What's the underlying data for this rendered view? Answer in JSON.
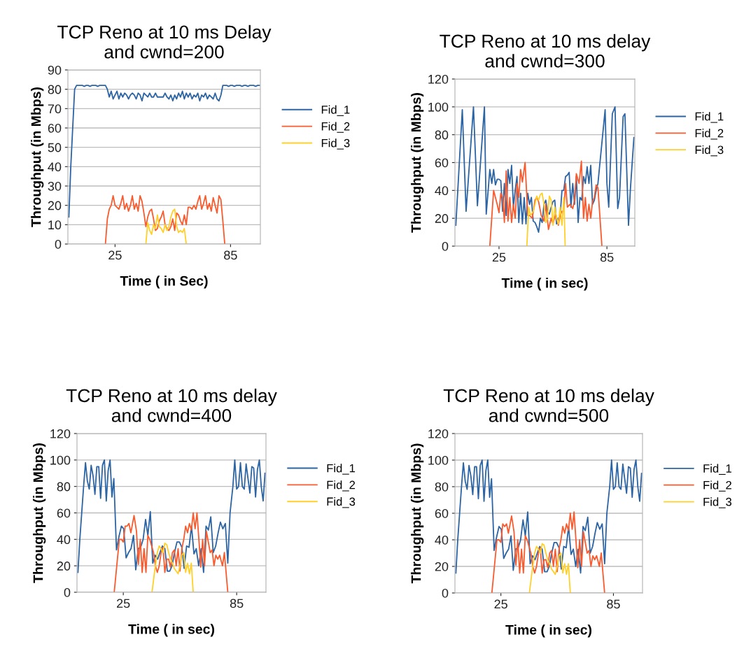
{
  "chart_data": [
    {
      "type": "line",
      "title": "TCP Reno at 10 ms Delay\nand cwnd=200",
      "xlabel": "Time ( in Sec)",
      "ylabel": "Throughput (in Mbps)",
      "xlim": [
        0.5,
        100.5
      ],
      "xticks": [
        25,
        85
      ],
      "ylim": [
        0,
        90
      ],
      "yticks": [
        0,
        10,
        20,
        30,
        40,
        50,
        60,
        70,
        80,
        90
      ],
      "grid": "y",
      "legend": "right",
      "series": [
        {
          "name": "Fid_1",
          "color": "#2c64a4",
          "x": [
            1,
            2,
            3,
            4,
            5,
            6,
            7,
            8,
            9,
            10,
            11,
            12,
            13,
            14,
            15,
            16,
            17,
            18,
            19,
            20,
            21,
            22,
            23,
            24,
            25,
            26,
            27,
            28,
            29,
            30,
            31,
            32,
            33,
            34,
            35,
            36,
            37,
            38,
            39,
            40,
            41,
            42,
            43,
            44,
            45,
            46,
            47,
            48,
            49,
            50,
            51,
            52,
            53,
            54,
            55,
            56,
            57,
            58,
            59,
            60,
            61,
            62,
            63,
            64,
            65,
            66,
            67,
            68,
            69,
            70,
            71,
            72,
            73,
            74,
            75,
            76,
            77,
            78,
            79,
            80,
            81,
            82,
            83,
            84,
            85,
            86,
            87,
            88,
            89,
            90,
            91,
            92,
            93,
            94,
            95,
            96,
            97,
            98,
            99,
            100
          ],
          "values": [
            14,
            40,
            60,
            80,
            82,
            82,
            82,
            82,
            81.5,
            82,
            82,
            81.5,
            82,
            82,
            82,
            81.5,
            82,
            82,
            82,
            82,
            80,
            76,
            79,
            75,
            77,
            79,
            75,
            78,
            76,
            78,
            77,
            75,
            77,
            78,
            77,
            75,
            78,
            77,
            74,
            78,
            77,
            76,
            78,
            76,
            76,
            78,
            76,
            76,
            76,
            76,
            78,
            76,
            75,
            77,
            74,
            77,
            75,
            78,
            76,
            79,
            75,
            78,
            76,
            78,
            75,
            77,
            76,
            78,
            74,
            77,
            76,
            78,
            75,
            77,
            76,
            75,
            78,
            75,
            74,
            77,
            82,
            82,
            82,
            81.5,
            82,
            82,
            81.5,
            82,
            82,
            82,
            81.5,
            82,
            82,
            81.5,
            82,
            82,
            82,
            81.5,
            82,
            82
          ]
        },
        {
          "name": "Fid_2",
          "color": "#f95b2e",
          "x": [
            20,
            21,
            22,
            23,
            24,
            25,
            26,
            27,
            28,
            29,
            30,
            31,
            32,
            33,
            34,
            35,
            36,
            37,
            38,
            39,
            40,
            41,
            42,
            43,
            44,
            45,
            46,
            47,
            48,
            49,
            50,
            51,
            52,
            53,
            54,
            55,
            56,
            57,
            58,
            59,
            60,
            61,
            62,
            63,
            64,
            65,
            66,
            67,
            68,
            69,
            70,
            71,
            72,
            73,
            74,
            75,
            76,
            77,
            78,
            79,
            80,
            81,
            82
          ],
          "values": [
            0,
            13,
            18,
            20,
            25,
            20,
            19,
            18,
            21,
            25,
            18,
            21,
            17,
            20,
            25,
            18,
            21,
            17,
            25,
            22,
            16,
            9,
            14,
            17,
            18,
            13,
            7,
            8,
            12,
            14,
            17,
            10,
            8,
            7,
            9,
            13,
            7,
            16,
            15,
            12,
            10,
            15,
            10,
            19,
            19,
            18,
            20,
            18,
            22,
            25,
            18,
            21,
            25,
            18,
            21,
            17,
            24,
            20,
            16,
            25,
            23,
            12,
            0
          ]
        },
        {
          "name": "Fid_3",
          "color": "#ffd02a",
          "x": [
            41,
            42,
            43,
            44,
            45,
            46,
            47,
            48,
            49,
            50,
            51,
            52,
            53,
            54,
            55,
            56,
            57,
            58,
            59,
            60,
            61,
            62
          ],
          "values": [
            0,
            11,
            7,
            5,
            10,
            8,
            15,
            9,
            8,
            6,
            10,
            7,
            9,
            14,
            17,
            18,
            9,
            6,
            7,
            6,
            8,
            0
          ]
        }
      ]
    },
    {
      "type": "line",
      "title": "TCP Reno at 10 ms delay\nand cwnd=300",
      "xlabel": "Time ( in sec)",
      "ylabel": "Throughput (in Mbps)",
      "xlim": [
        0.5,
        100.5
      ],
      "xticks": [
        25,
        85
      ],
      "ylim": [
        0,
        120
      ],
      "yticks": [
        0,
        20,
        40,
        60,
        80,
        100,
        120
      ],
      "grid": "y",
      "legend": "right",
      "series": [
        {
          "name": "Fid_1",
          "color": "#2c64a4",
          "x": [
            1,
            4.6,
            6.7,
            10.8,
            13,
            16.9,
            17.9,
            19.9,
            21,
            22,
            23,
            24,
            25,
            26,
            27,
            28,
            29,
            30,
            31,
            32,
            33,
            34,
            35,
            36,
            37,
            38,
            39,
            40,
            41,
            42,
            43,
            44,
            45,
            46,
            47,
            48,
            49,
            50,
            51,
            52,
            53,
            54,
            55,
            56,
            57,
            58,
            59,
            60,
            61,
            62,
            63,
            64,
            65,
            66,
            67,
            68,
            69,
            70,
            71,
            72,
            73,
            74,
            75,
            76,
            77,
            78,
            79,
            80,
            84,
            85,
            86,
            88,
            89.5,
            91,
            92,
            94,
            95,
            97,
            98,
            100
          ],
          "values": [
            15,
            98,
            25,
            100,
            29,
            100,
            23,
            55,
            45,
            55,
            44,
            48,
            48,
            47,
            25,
            45,
            22,
            55,
            45,
            58,
            28,
            40,
            50,
            17,
            38,
            16,
            35,
            16,
            38,
            30,
            35,
            18,
            17,
            14,
            10,
            20,
            17,
            30,
            33,
            25,
            23,
            28,
            32,
            33,
            16,
            20,
            22,
            40,
            40,
            50,
            51,
            53,
            28,
            45,
            30,
            50,
            17,
            35,
            33,
            50,
            45,
            57,
            45,
            58,
            30,
            33,
            40,
            45,
            98,
            45,
            28,
            95,
            100,
            27,
            35,
            93,
            95,
            15,
            40,
            78
          ]
        },
        {
          "name": "Fid_2",
          "color": "#f95b2e",
          "x": [
            19.9,
            22,
            23,
            24,
            25,
            26,
            27,
            28,
            29,
            30,
            31,
            32,
            33,
            34,
            35,
            36,
            37,
            38,
            39.5,
            41,
            42,
            43.5,
            45,
            46,
            47,
            48.5,
            50,
            51,
            52.5,
            54,
            55,
            56.5,
            58,
            59,
            60,
            61,
            62,
            63,
            64.5,
            66,
            67,
            68,
            69.5,
            70.8,
            72,
            73,
            74,
            75,
            76,
            77,
            78,
            79,
            80,
            82.2
          ],
          "values": [
            0,
            40,
            35,
            30,
            24,
            38,
            35,
            17,
            54,
            18,
            35,
            17,
            30,
            20,
            45,
            35,
            55,
            46,
            60,
            22,
            22,
            20,
            33,
            35,
            32,
            22,
            18,
            30,
            12,
            20,
            16,
            23,
            15,
            22,
            25,
            25,
            45,
            28,
            30,
            27,
            33,
            52,
            45,
            61,
            20,
            35,
            18,
            30,
            20,
            32,
            35,
            44,
            42,
            0
          ]
        },
        {
          "name": "Fid_3",
          "color": "#ffd02a",
          "x": [
            40.5,
            41.5,
            42.5,
            44,
            45,
            46,
            47,
            48,
            49,
            50,
            51,
            52,
            53,
            54,
            55,
            56,
            57,
            58,
            59,
            60,
            61,
            61.8
          ],
          "values": [
            0,
            28,
            22,
            25,
            30,
            36,
            33,
            37,
            38,
            30,
            17,
            20,
            36,
            33,
            15,
            28,
            20,
            16,
            28,
            15,
            35,
            0
          ]
        }
      ]
    },
    {
      "type": "line",
      "title": "TCP Reno at 10 ms delay\nand cwnd=400",
      "xlabel": "Time ( in sec)",
      "ylabel": "Throughput (in Mbps)",
      "xlim": [
        0.5,
        100.5
      ],
      "xticks": [
        25,
        85
      ],
      "ylim": [
        0,
        120
      ],
      "yticks": [
        0,
        20,
        40,
        60,
        80,
        100,
        120
      ],
      "grid": "y",
      "legend": "right",
      "series": [
        {
          "name": "Fid_1",
          "color": "#2c64a4",
          "x": [
            1,
            2,
            3,
            4,
            5,
            6,
            7,
            8,
            9,
            10,
            11,
            12,
            13,
            14,
            15,
            16,
            17,
            18,
            19,
            20,
            21.4,
            22.7,
            24.0,
            25.2,
            26.5,
            27.8,
            29.1,
            30.4,
            31.6,
            32.9,
            34.2,
            35.5,
            36.8,
            38.0,
            39.3,
            40.6,
            41.9,
            43.2,
            44.4,
            45.7,
            47.0,
            48.3,
            49.6,
            50.8,
            52.1,
            53.4,
            54.7,
            56.0,
            57.2,
            58.5,
            59.8,
            61.1,
            62.4,
            63.6,
            64.9,
            66.2,
            67.5,
            68.8,
            70.0,
            71.3,
            72.6,
            73.9,
            75.2,
            76.4,
            77.7,
            79.0,
            80.3,
            81.5,
            83,
            84,
            85,
            86,
            87,
            88,
            89,
            90,
            91,
            92,
            93,
            94,
            95,
            96,
            97,
            98,
            99,
            100
          ],
          "values": [
            15,
            40,
            60,
            80,
            98,
            84,
            78,
            96,
            88,
            74,
            95,
            95,
            71,
            96,
            100,
            69,
            92,
            100,
            72,
            86,
            32,
            42,
            50,
            48,
            26,
            30,
            33,
            43,
            17,
            33,
            34,
            40,
            55,
            43,
            61,
            22,
            28,
            25,
            30,
            35,
            33,
            16,
            16,
            20,
            30,
            38,
            38,
            34,
            18,
            35,
            34,
            50,
            29,
            33,
            20,
            33,
            15,
            50,
            47,
            57,
            30,
            35,
            45,
            53,
            48,
            52,
            22,
            60,
            80,
            100,
            78,
            80,
            98,
            80,
            78,
            97,
            86,
            75,
            95,
            94,
            72,
            93,
            100,
            80,
            69,
            90
          ]
        },
        {
          "name": "Fid_2",
          "color": "#f95b2e",
          "x": [
            20.2,
            22.9,
            24,
            25,
            26,
            27,
            28,
            29,
            30.7,
            32,
            33,
            34,
            35,
            36,
            37,
            38,
            39,
            40,
            41,
            42,
            43,
            44,
            45,
            46,
            47,
            48,
            49,
            50,
            51,
            52,
            53,
            54,
            55,
            56,
            57,
            58,
            59,
            60,
            61,
            62,
            63,
            64,
            65,
            66,
            67,
            68,
            69,
            70,
            71,
            72,
            73,
            74,
            75,
            76,
            77.5,
            78.5,
            80.3
          ],
          "values": [
            0,
            40,
            40,
            38,
            50,
            50,
            52,
            45,
            58,
            46,
            21,
            40,
            15,
            33,
            15,
            43,
            40,
            35,
            30,
            20,
            15,
            20,
            30,
            34,
            15,
            25,
            25,
            19,
            30,
            32,
            20,
            33,
            16,
            33,
            40,
            50,
            45,
            52,
            47,
            60,
            48,
            60,
            40,
            19,
            40,
            20,
            46,
            38,
            30,
            32,
            20,
            28,
            25,
            28,
            20,
            30,
            0
          ]
        },
        {
          "name": "Fid_3",
          "color": "#ffd02a",
          "x": [
            40.2,
            41.5,
            43,
            44,
            45,
            46,
            47,
            48,
            49,
            50,
            51,
            52,
            53,
            54,
            55,
            56,
            57,
            58,
            59,
            60,
            61,
            62
          ],
          "values": [
            0,
            15,
            30,
            35,
            33,
            30,
            37,
            36,
            30,
            25,
            22,
            18,
            16,
            14,
            20,
            28,
            30,
            15,
            22,
            14,
            22,
            0
          ]
        }
      ]
    },
    {
      "type": "line",
      "title": "TCP Reno at 10 ms delay\nand cwnd=500",
      "xlabel": "Time ( in sec)",
      "ylabel": "Throughput (in Mbps)",
      "xlim": [
        0.5,
        100.5
      ],
      "xticks": [
        25,
        85
      ],
      "ylim": [
        0,
        120
      ],
      "yticks": [
        0,
        20,
        40,
        60,
        80,
        100,
        120
      ],
      "grid": "y",
      "legend": "right",
      "series": [
        {
          "name": "Fid_1",
          "color": "#2c64a4",
          "x": [
            1,
            2,
            3,
            4,
            5,
            6,
            7,
            8,
            9,
            10,
            11,
            12,
            13,
            14,
            15,
            16,
            17,
            18,
            19,
            20,
            21.4,
            22.7,
            24.0,
            25.2,
            26.5,
            27.8,
            29.1,
            30.4,
            31.6,
            32.9,
            34.2,
            35.5,
            36.8,
            38.0,
            39.3,
            40.6,
            41.9,
            43.2,
            44.4,
            45.7,
            47.0,
            48.3,
            49.6,
            50.8,
            52.1,
            53.4,
            54.7,
            56.0,
            57.2,
            58.5,
            59.8,
            61.1,
            62.4,
            63.6,
            64.9,
            66.2,
            67.5,
            68.8,
            70.0,
            71.3,
            72.6,
            73.9,
            75.2,
            76.4,
            77.7,
            79.0,
            80.3,
            81.5,
            83,
            84,
            85,
            86,
            87,
            88,
            89,
            90,
            91,
            92,
            93,
            94,
            95,
            96,
            97,
            98,
            99,
            100
          ],
          "values": [
            15,
            40,
            60,
            80,
            98,
            84,
            78,
            96,
            88,
            74,
            95,
            95,
            71,
            96,
            100,
            69,
            92,
            100,
            72,
            86,
            32,
            42,
            50,
            48,
            26,
            30,
            33,
            43,
            17,
            33,
            34,
            40,
            55,
            43,
            61,
            22,
            28,
            25,
            30,
            35,
            33,
            16,
            16,
            20,
            30,
            38,
            38,
            34,
            18,
            35,
            34,
            50,
            29,
            33,
            20,
            33,
            15,
            50,
            47,
            57,
            30,
            35,
            45,
            53,
            48,
            52,
            22,
            60,
            80,
            100,
            78,
            80,
            98,
            80,
            78,
            97,
            86,
            75,
            95,
            94,
            72,
            93,
            100,
            80,
            69,
            90
          ]
        },
        {
          "name": "Fid_2",
          "color": "#f95b2e",
          "x": [
            20.2,
            22.9,
            24,
            25,
            26,
            27,
            28,
            29,
            30.7,
            32,
            33,
            34,
            35,
            36,
            37,
            38,
            39,
            40,
            41,
            42,
            43,
            44,
            45,
            46,
            47,
            48,
            49,
            50,
            51,
            52,
            53,
            54,
            55,
            56,
            57,
            58,
            59,
            60,
            61,
            62,
            63,
            64,
            65,
            66,
            67,
            68,
            69,
            70,
            71,
            72,
            73,
            74,
            75,
            76,
            77.5,
            78.5,
            80.3
          ],
          "values": [
            0,
            40,
            40,
            38,
            52,
            50,
            52,
            45,
            58,
            46,
            21,
            40,
            15,
            33,
            15,
            43,
            40,
            35,
            30,
            20,
            15,
            20,
            30,
            34,
            15,
            25,
            25,
            19,
            30,
            32,
            20,
            33,
            16,
            33,
            40,
            50,
            45,
            52,
            47,
            60,
            48,
            61,
            40,
            19,
            40,
            20,
            46,
            38,
            30,
            32,
            20,
            28,
            25,
            28,
            20,
            30,
            0
          ]
        },
        {
          "name": "Fid_3",
          "color": "#ffd02a",
          "x": [
            40.2,
            41.5,
            43,
            44,
            45,
            46,
            47,
            48,
            49,
            50,
            51,
            52,
            53,
            54,
            55,
            56,
            57,
            58,
            59,
            60,
            61,
            62
          ],
          "values": [
            0,
            15,
            30,
            35,
            33,
            30,
            37,
            36,
            30,
            25,
            22,
            18,
            16,
            14,
            20,
            28,
            30,
            15,
            22,
            14,
            22,
            0
          ]
        }
      ]
    }
  ]
}
